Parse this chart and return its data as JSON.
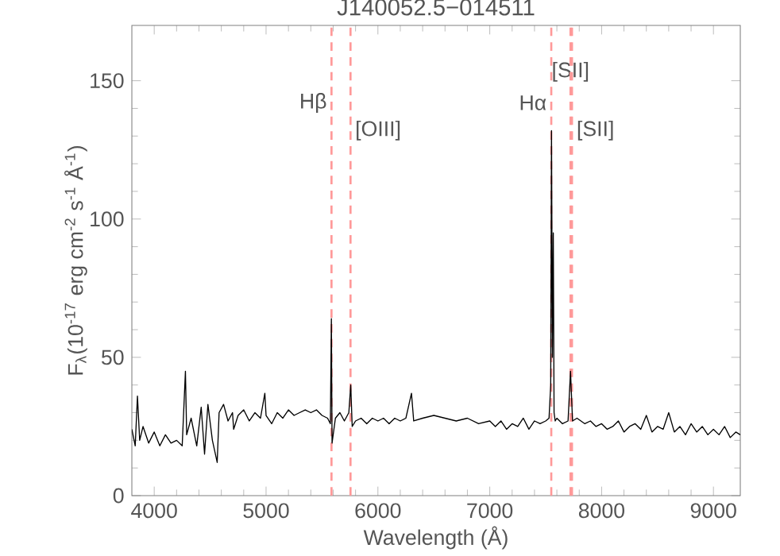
{
  "chart_data": {
    "type": "line",
    "title": "J140052.5−014511",
    "xlabel": "Wavelength (Å)",
    "ylabel": "F$_{λ}$(10$^{-17}$ erg cm$^{-2}$ s$^{-1}$ Å$^{-1}$)",
    "xlim": [
      3800,
      9240
    ],
    "ylim": [
      0,
      170
    ],
    "xticks": [
      4000,
      5000,
      6000,
      7000,
      8000,
      9000
    ],
    "yticks": [
      0,
      50,
      100,
      150
    ],
    "series": [
      {
        "color": "#000000",
        "x": [
          3800,
          3830,
          3850,
          3870,
          3900,
          3950,
          4000,
          4050,
          4100,
          4150,
          4200,
          4250,
          4279,
          4290,
          4330,
          4380,
          4420,
          4450,
          4480,
          4520,
          4563,
          4580,
          4620,
          4660,
          4700,
          4710,
          4750,
          4800,
          4850,
          4900,
          4950,
          4989,
          5000,
          5050,
          5100,
          5150,
          5200,
          5250,
          5300,
          5350,
          5400,
          5450,
          5500,
          5550,
          5575,
          5584,
          5590,
          5620,
          5660,
          5700,
          5740,
          5757,
          5770,
          5800,
          5850,
          5900,
          5950,
          6000,
          6050,
          6100,
          6150,
          6200,
          6250,
          6300,
          6320,
          6400,
          6500,
          6600,
          6700,
          6800,
          6900,
          7000,
          7050,
          7100,
          7150,
          7200,
          7250,
          7300,
          7350,
          7400,
          7450,
          7500,
          7530,
          7545,
          7552,
          7560,
          7568,
          7575,
          7585,
          7600,
          7650,
          7700,
          7722,
          7740,
          7780,
          7850,
          7900,
          7950,
          8000,
          8050,
          8100,
          8150,
          8200,
          8250,
          8300,
          8350,
          8400,
          8450,
          8500,
          8550,
          8600,
          8650,
          8700,
          8750,
          8800,
          8850,
          8900,
          8950,
          9000,
          9050,
          9100,
          9150,
          9200,
          9240
        ],
        "values": [
          24,
          18,
          36,
          20,
          25,
          19,
          23,
          18,
          22,
          19,
          20,
          18,
          45,
          22,
          28,
          18,
          32,
          15,
          33,
          20,
          12,
          30,
          33,
          27,
          30,
          24,
          29,
          31,
          27,
          30,
          28,
          37,
          29,
          26,
          30,
          28,
          31,
          29,
          30,
          31,
          30,
          31,
          29,
          28,
          26,
          64,
          19,
          28,
          30,
          27,
          30,
          40,
          25,
          27,
          28,
          26,
          28,
          27,
          28,
          26,
          28,
          27,
          28,
          37,
          27,
          28,
          29,
          28,
          27,
          28,
          26,
          27,
          25,
          27,
          24,
          26,
          25,
          28,
          24,
          27,
          26,
          27,
          28,
          40,
          132,
          50,
          95,
          30,
          27,
          28,
          26,
          27,
          45,
          27,
          28,
          26,
          27,
          25,
          26,
          24,
          25,
          27,
          23,
          25,
          26,
          24,
          29,
          23,
          25,
          24,
          30,
          23,
          25,
          22,
          26,
          23,
          25,
          22,
          24,
          22,
          25,
          21,
          23,
          22
        ]
      }
    ],
    "ref_lines": [
      {
        "axis": "x",
        "value": 5585,
        "label": "Hβ",
        "color": "#ff9999",
        "line_style": "dashed"
      },
      {
        "axis": "x",
        "value": 5755,
        "label": "[OIII]",
        "color": "#ff9999",
        "line_style": "dashed"
      },
      {
        "axis": "x",
        "value": 7550,
        "label": "Hα",
        "color": "#ff9999",
        "line_style": "dashed"
      },
      {
        "axis": "x",
        "value": 7722,
        "label": "[SII]",
        "color": "#ff9999",
        "line_style": "dashed"
      },
      {
        "axis": "x",
        "value": 7735,
        "label": "[SII]",
        "color": "#ff9999",
        "line_style": "dashed"
      }
    ]
  }
}
